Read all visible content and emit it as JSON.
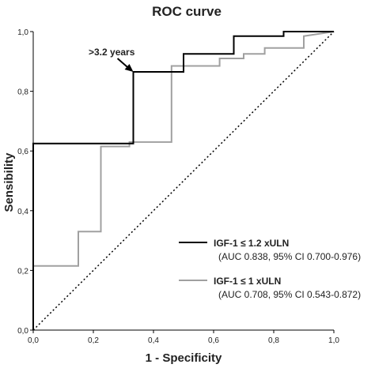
{
  "chart_data": {
    "type": "line",
    "title": "ROC curve",
    "xlabel": "1 - Specificity",
    "ylabel": "Sensibility",
    "xlim": [
      0,
      1
    ],
    "ylim": [
      0,
      1
    ],
    "x_ticks": [
      "0,0",
      "0,2",
      "0,4",
      "0,6",
      "0,8",
      "1,0"
    ],
    "y_ticks": [
      "0,0",
      "0,2",
      "0,4",
      "0,6",
      "0,8",
      "1,0"
    ],
    "grid": false,
    "legend_position": "bottom-right",
    "series": [
      {
        "name": "IGF-1 ≤ 1.2 xULN",
        "detail": "(AUC 0.838, 95% CI 0.700-0.976)",
        "color": "#000000",
        "x": [
          0,
          0,
          0.333,
          0.333,
          0.5,
          0.5,
          0.667,
          0.667,
          0.833,
          0.833,
          1.0
        ],
        "y": [
          0,
          0.625,
          0.625,
          0.865,
          0.865,
          0.925,
          0.925,
          0.985,
          0.985,
          1.0,
          1.0
        ]
      },
      {
        "name": "IGF-1 ≤ 1 xULN",
        "detail": "(AUC 0.708, 95% CI 0.543-0.872)",
        "color": "#a0a0a0",
        "x": [
          0,
          0,
          0.15,
          0.15,
          0.225,
          0.225,
          0.32,
          0.32,
          0.46,
          0.46,
          0.62,
          0.62,
          0.7,
          0.7,
          0.77,
          0.77,
          0.9,
          0.9,
          1.0
        ],
        "y": [
          0,
          0.215,
          0.215,
          0.33,
          0.33,
          0.615,
          0.615,
          0.63,
          0.63,
          0.885,
          0.885,
          0.91,
          0.91,
          0.925,
          0.925,
          0.945,
          0.945,
          0.985,
          1.0
        ]
      },
      {
        "name": "",
        "detail": "",
        "color": "#000000",
        "dashed": true,
        "x": [
          0,
          1
        ],
        "y": [
          0,
          1
        ]
      }
    ],
    "annotations": [
      {
        "text": ">3.2 years",
        "x": 0.333,
        "y": 0.865
      }
    ]
  }
}
